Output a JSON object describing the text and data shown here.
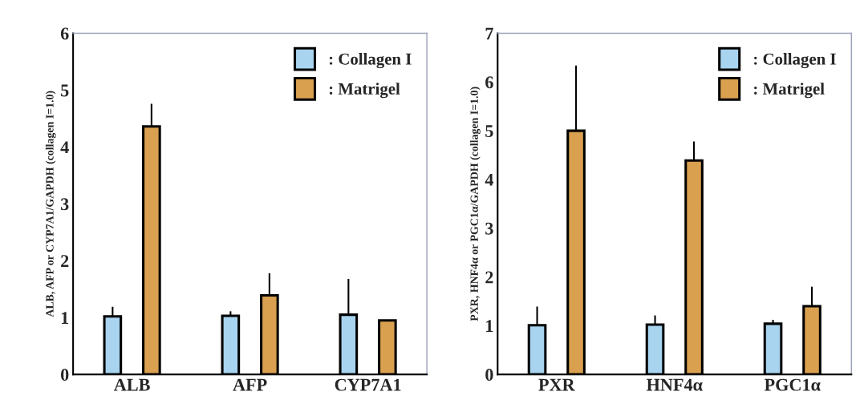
{
  "chart_data": [
    {
      "type": "bar",
      "ylabel": "ALB, AFP or CYP7A1/GAPDH (collagen I=1.0)",
      "categories": [
        "ALB",
        "AFP",
        "CYP7A1"
      ],
      "ylim": [
        0,
        6
      ],
      "yticks": [
        0,
        1,
        2,
        3,
        4,
        5,
        6
      ],
      "legend": "top right",
      "grid": false,
      "series": [
        {
          "name": ": Collagen I",
          "color": "#a8d4f0",
          "values": [
            1.02,
            1.03,
            1.05
          ],
          "errors": [
            [
              1.02,
              1.19
            ],
            [
              1.03,
              1.11
            ],
            [
              1.05,
              1.68
            ]
          ]
        },
        {
          "name": ": Matrigel",
          "color": "#d9a050",
          "values": [
            4.36,
            1.39,
            0.95
          ],
          "errors": [
            [
              4.36,
              4.76
            ],
            [
              1.39,
              1.78
            ],
            null
          ]
        }
      ]
    },
    {
      "type": "bar",
      "ylabel": "PXR, HNF4α or PGC1α/GAPDH (collagen I=1.0)",
      "categories": [
        "PXR",
        "HNF4α",
        "PGC1α"
      ],
      "ylim": [
        0,
        7
      ],
      "yticks": [
        0,
        1,
        2,
        3,
        4,
        5,
        6,
        7
      ],
      "legend": "top right",
      "grid": false,
      "series": [
        {
          "name": ": Collagen I",
          "color": "#a8d4f0",
          "values": [
            1.01,
            1.02,
            1.04
          ],
          "errors": [
            [
              1.01,
              1.39
            ],
            [
              1.02,
              1.21
            ],
            [
              1.04,
              1.12
            ]
          ]
        },
        {
          "name": ": Matrigel",
          "color": "#d9a050",
          "values": [
            5.0,
            4.39,
            1.4
          ],
          "errors": [
            [
              5.0,
              6.34
            ],
            [
              4.39,
              4.78
            ],
            [
              1.4,
              1.8
            ]
          ]
        }
      ]
    }
  ]
}
